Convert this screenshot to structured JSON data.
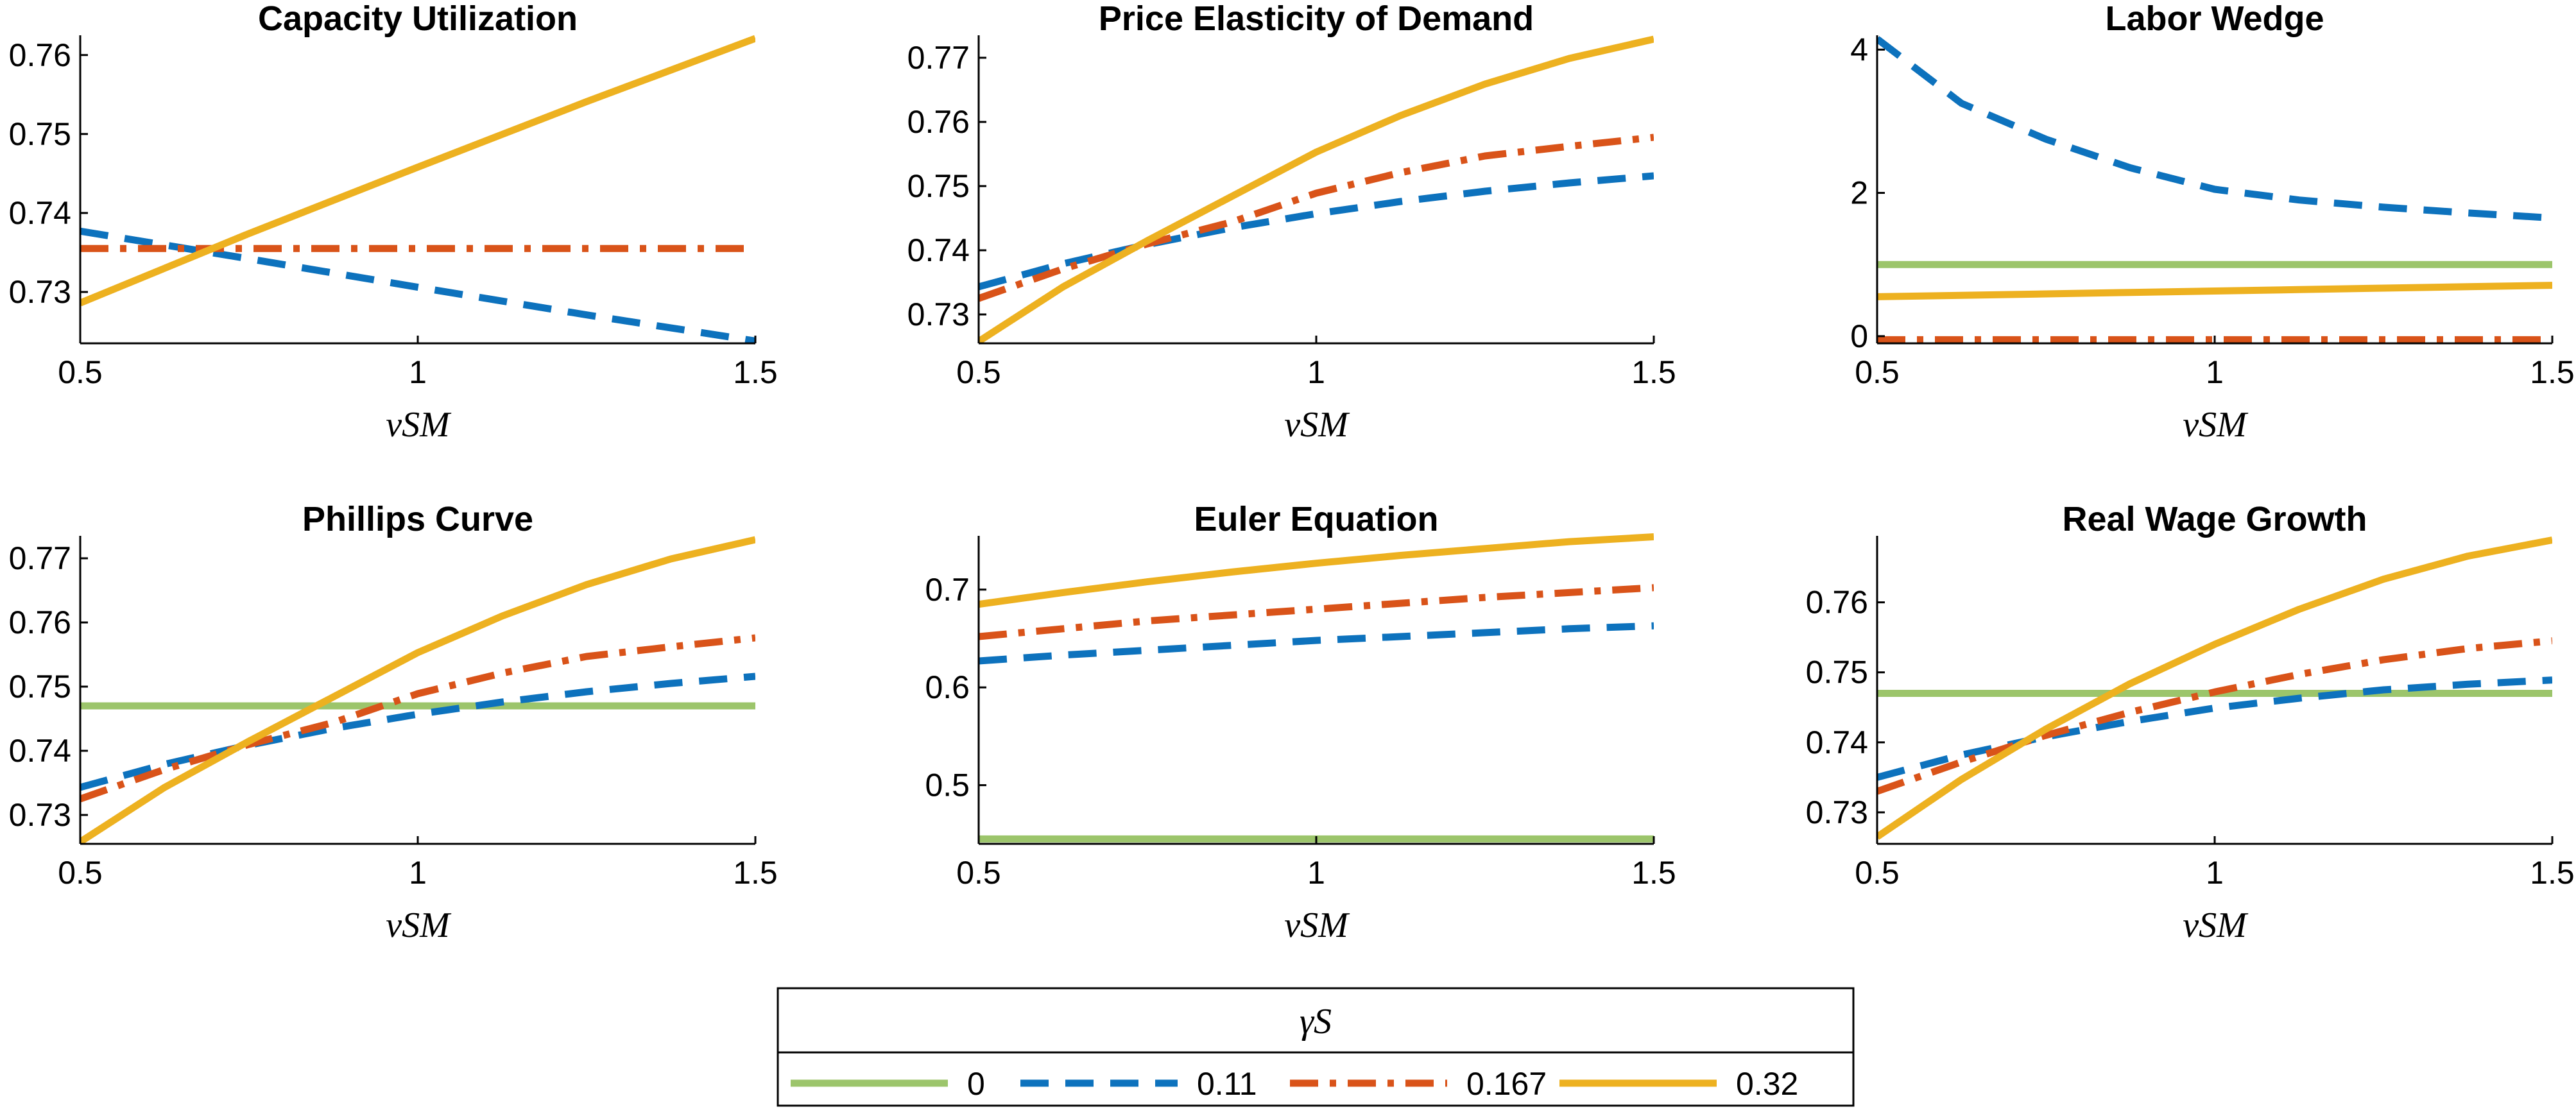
{
  "legend": {
    "title": "γS",
    "placement": "bottom-center",
    "entries": [
      {
        "label": "0",
        "color": "#9cc56b",
        "dash": "solid"
      },
      {
        "label": "0.11",
        "color": "#0d72bd",
        "dash": "dashed"
      },
      {
        "label": "0.167",
        "color": "#d95319",
        "dash": "dashdot"
      },
      {
        "label": "0.32",
        "color": "#edb120",
        "dash": "solid"
      }
    ]
  },
  "chart_data": [
    {
      "type": "line",
      "title": "Capacity Utilization",
      "xlabel": "νSM",
      "xlim": [
        0.5,
        1.5
      ],
      "ylim": [
        0.7235,
        0.7625
      ],
      "xticks": [
        0.5,
        1,
        1.5
      ],
      "xtick_labels": [
        "0.5",
        "1",
        "1.5"
      ],
      "yticks": [
        0.73,
        0.74,
        0.75,
        0.76
      ],
      "ytick_labels": [
        "0.73",
        "0.74",
        "0.75",
        "0.76"
      ],
      "x": [
        0.5,
        0.75,
        1.0,
        1.25,
        1.5
      ],
      "series": [
        {
          "name": "0.11",
          "values": [
            0.7377,
            0.7342,
            0.7306,
            0.7271,
            0.7238
          ]
        },
        {
          "name": "0.167",
          "values": [
            0.7355,
            0.7355,
            0.7355,
            0.7355,
            0.7355
          ]
        },
        {
          "name": "0.32",
          "values": [
            0.7286,
            0.7374,
            0.7458,
            0.7541,
            0.7621
          ]
        }
      ]
    },
    {
      "type": "line",
      "title": "Price Elasticity of Demand",
      "xlabel": "νSM",
      "xlim": [
        0.5,
        1.5
      ],
      "ylim": [
        0.7255,
        0.7735
      ],
      "xticks": [
        0.5,
        1,
        1.5
      ],
      "xtick_labels": [
        "0.5",
        "1",
        "1.5"
      ],
      "yticks": [
        0.73,
        0.74,
        0.75,
        0.76,
        0.77
      ],
      "ytick_labels": [
        "0.73",
        "0.74",
        "0.75",
        "0.76",
        "0.77"
      ],
      "x": [
        0.5,
        0.625,
        0.75,
        0.875,
        1.0,
        1.125,
        1.25,
        1.375,
        1.5
      ],
      "series": [
        {
          "name": "0.11",
          "values": [
            0.7343,
            0.7379,
            0.7409,
            0.7435,
            0.7457,
            0.7476,
            0.7492,
            0.7505,
            0.7516
          ]
        },
        {
          "name": "0.167",
          "values": [
            0.7325,
            0.7371,
            0.741,
            0.7444,
            0.7489,
            0.7521,
            0.7547,
            0.7562,
            0.7576
          ]
        },
        {
          "name": "0.32",
          "values": [
            0.7258,
            0.7343,
            0.7415,
            0.7484,
            0.7553,
            0.761,
            0.7659,
            0.7699,
            0.7729
          ]
        }
      ]
    },
    {
      "type": "line",
      "title": "Labor Wedge",
      "xlabel": "νSM",
      "xlim": [
        0.5,
        1.5
      ],
      "ylim": [
        -0.1,
        4.2
      ],
      "xticks": [
        0.5,
        1,
        1.5
      ],
      "xtick_labels": [
        "0.5",
        "1",
        "1.5"
      ],
      "yticks": [
        0,
        2,
        4
      ],
      "ytick_labels": [
        "0",
        "2",
        "4"
      ],
      "x": [
        0.5,
        0.625,
        0.75,
        0.875,
        1.0,
        1.125,
        1.25,
        1.375,
        1.5
      ],
      "series": [
        {
          "name": "0",
          "values": [
            1.0,
            1.0,
            1.0,
            1.0,
            1.0,
            1.0,
            1.0,
            1.0,
            1.0
          ]
        },
        {
          "name": "0.11",
          "values": [
            4.15,
            3.25,
            2.75,
            2.35,
            2.05,
            1.9,
            1.8,
            1.72,
            1.65
          ]
        },
        {
          "name": "0.167",
          "values": [
            -0.05,
            -0.05,
            -0.05,
            -0.05,
            -0.05,
            -0.05,
            -0.05,
            -0.05,
            -0.05
          ]
        },
        {
          "name": "0.32",
          "values": [
            0.55,
            0.57,
            0.59,
            0.61,
            0.63,
            0.65,
            0.67,
            0.69,
            0.71
          ]
        }
      ]
    },
    {
      "type": "line",
      "title": "Phillips Curve",
      "xlabel": "νSM",
      "xlim": [
        0.5,
        1.5
      ],
      "ylim": [
        0.7255,
        0.7735
      ],
      "xticks": [
        0.5,
        1,
        1.5
      ],
      "xtick_labels": [
        "0.5",
        "1",
        "1.5"
      ],
      "yticks": [
        0.73,
        0.74,
        0.75,
        0.76,
        0.77
      ],
      "ytick_labels": [
        "0.73",
        "0.74",
        "0.75",
        "0.76",
        "0.77"
      ],
      "x": [
        0.5,
        0.625,
        0.75,
        0.875,
        1.0,
        1.125,
        1.25,
        1.375,
        1.5
      ],
      "series": [
        {
          "name": "0",
          "values": [
            0.747,
            0.747,
            0.747,
            0.747,
            0.747,
            0.747,
            0.747,
            0.747,
            0.747
          ]
        },
        {
          "name": "0.11",
          "values": [
            0.7343,
            0.7379,
            0.7409,
            0.7435,
            0.7457,
            0.7476,
            0.7492,
            0.7505,
            0.7516
          ]
        },
        {
          "name": "0.167",
          "values": [
            0.7325,
            0.7371,
            0.741,
            0.7444,
            0.7489,
            0.7521,
            0.7547,
            0.7562,
            0.7576
          ]
        },
        {
          "name": "0.32",
          "values": [
            0.7258,
            0.7343,
            0.7415,
            0.7484,
            0.7553,
            0.761,
            0.7659,
            0.7699,
            0.7729
          ]
        }
      ]
    },
    {
      "type": "line",
      "title": "Euler Equation",
      "xlabel": "νSM",
      "xlim": [
        0.5,
        1.5
      ],
      "ylim": [
        0.44,
        0.755
      ],
      "xticks": [
        0.5,
        1,
        1.5
      ],
      "xtick_labels": [
        "0.5",
        "1",
        "1.5"
      ],
      "yticks": [
        0.5,
        0.6,
        0.7
      ],
      "ytick_labels": [
        "0.5",
        "0.6",
        "0.7"
      ],
      "x": [
        0.5,
        0.625,
        0.75,
        0.875,
        1.0,
        1.125,
        1.25,
        1.375,
        1.5
      ],
      "series": [
        {
          "name": "0",
          "values": [
            0.445,
            0.445,
            0.445,
            0.445,
            0.445,
            0.445,
            0.445,
            0.445,
            0.445
          ]
        },
        {
          "name": "0.11",
          "values": [
            0.627,
            0.633,
            0.638,
            0.643,
            0.648,
            0.652,
            0.656,
            0.66,
            0.663
          ]
        },
        {
          "name": "0.167",
          "values": [
            0.652,
            0.66,
            0.668,
            0.674,
            0.68,
            0.686,
            0.692,
            0.697,
            0.702
          ]
        },
        {
          "name": "0.32",
          "values": [
            0.685,
            0.697,
            0.708,
            0.718,
            0.727,
            0.735,
            0.742,
            0.749,
            0.754
          ]
        }
      ]
    },
    {
      "type": "line",
      "title": "Real Wage Growth",
      "xlabel": "νSM",
      "xlim": [
        0.5,
        1.5
      ],
      "ylim": [
        0.7255,
        0.7695
      ],
      "xticks": [
        0.5,
        1,
        1.5
      ],
      "xtick_labels": [
        "0.5",
        "1",
        "1.5"
      ],
      "yticks": [
        0.73,
        0.74,
        0.75,
        0.76
      ],
      "ytick_labels": [
        "0.73",
        "0.74",
        "0.75",
        "0.76"
      ],
      "x": [
        0.5,
        0.625,
        0.75,
        0.875,
        1.0,
        1.125,
        1.25,
        1.375,
        1.5
      ],
      "series": [
        {
          "name": "0",
          "values": [
            0.747,
            0.747,
            0.747,
            0.747,
            0.747,
            0.747,
            0.747,
            0.747,
            0.747
          ]
        },
        {
          "name": "0.11",
          "values": [
            0.735,
            0.7382,
            0.7408,
            0.743,
            0.7449,
            0.7463,
            0.7475,
            0.7483,
            0.7489
          ]
        },
        {
          "name": "0.167",
          "values": [
            0.733,
            0.7372,
            0.741,
            0.7443,
            0.7472,
            0.7497,
            0.7518,
            0.7534,
            0.7545
          ]
        },
        {
          "name": "0.32",
          "values": [
            0.7265,
            0.7347,
            0.7419,
            0.7484,
            0.754,
            0.759,
            0.7633,
            0.7666,
            0.7689
          ]
        }
      ]
    }
  ]
}
